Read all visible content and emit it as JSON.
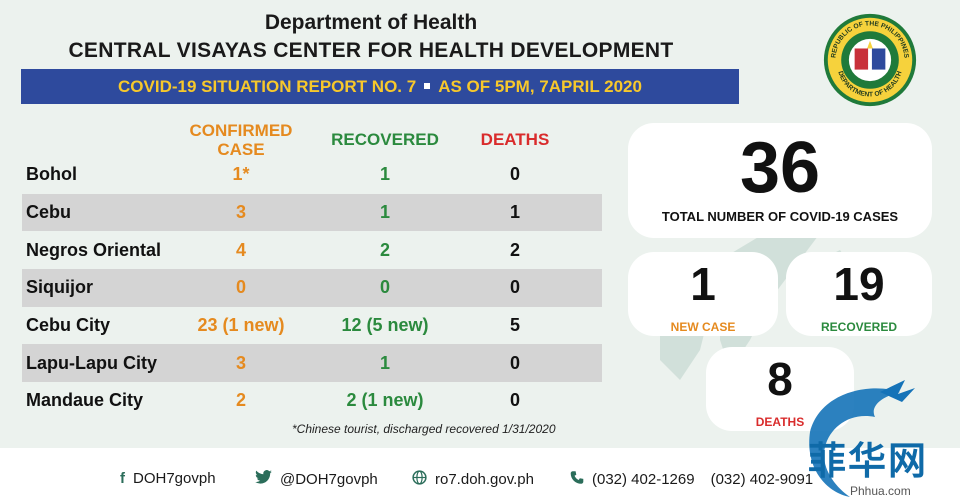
{
  "header": {
    "title": "Department of Health",
    "subtitle": "CENTRAL VISAYAS CENTER FOR HEALTH DEVELOPMENT",
    "report_label": "COVID-19 SITUATION REPORT NO. 7",
    "report_date": "AS OF 5PM, 7APRIL 2020",
    "seal_text_top": "REPUBLIC OF THE PHILIPPINES",
    "seal_text_bottom": "DEPARTMENT OF HEALTH"
  },
  "table": {
    "headers": {
      "confirmed": "CONFIRMED CASE",
      "recovered": "RECOVERED",
      "deaths": "DEATHS"
    },
    "rows": [
      {
        "name": "Bohol",
        "confirmed": "1*",
        "recovered": "1",
        "deaths": "0"
      },
      {
        "name": "Cebu",
        "confirmed": "3",
        "recovered": "1",
        "deaths": "1"
      },
      {
        "name": "Negros Oriental",
        "confirmed": "4",
        "recovered": "2",
        "deaths": "2"
      },
      {
        "name": "Siquijor",
        "confirmed": "0",
        "recovered": "0",
        "deaths": "0"
      },
      {
        "name": "Cebu City",
        "confirmed": "23 (1 new)",
        "recovered": "12 (5 new)",
        "deaths": "5"
      },
      {
        "name": "Lapu-Lapu City",
        "confirmed": "3",
        "recovered": "1",
        "deaths": "0"
      },
      {
        "name": "Mandaue City",
        "confirmed": "2",
        "recovered": "2 (1 new)",
        "deaths": "0"
      }
    ],
    "footnote": "*Chinese tourist, discharged recovered 1/31/2020"
  },
  "summary": {
    "total": {
      "value": "36",
      "label": "TOTAL NUMBER OF COVID-19 CASES"
    },
    "new_case": {
      "value": "1",
      "label": "NEW CASE"
    },
    "recovered": {
      "value": "19",
      "label": "RECOVERED"
    },
    "deaths": {
      "value": "8",
      "label": "DEATHS"
    }
  },
  "footer": {
    "facebook": "DOH7govph",
    "twitter": "@DOH7govph",
    "website": "ro7.doh.gov.ph",
    "phone1": "(032) 402-1269",
    "phone2": "(032) 402-9091"
  },
  "watermark": {
    "text": "菲华网",
    "url": "Phhua.com"
  },
  "colors": {
    "banner": "#2e4a9d",
    "banner_text": "#f7c82b",
    "confirmed": "#e58a1f",
    "recovered": "#2b8a3e",
    "deaths": "#d92c2c",
    "background": "#ecf2ee"
  },
  "icons": [
    "facebook-icon",
    "twitter-icon",
    "globe-icon",
    "phone-icon",
    "doh-seal-icon",
    "dragon-logo-icon"
  ]
}
